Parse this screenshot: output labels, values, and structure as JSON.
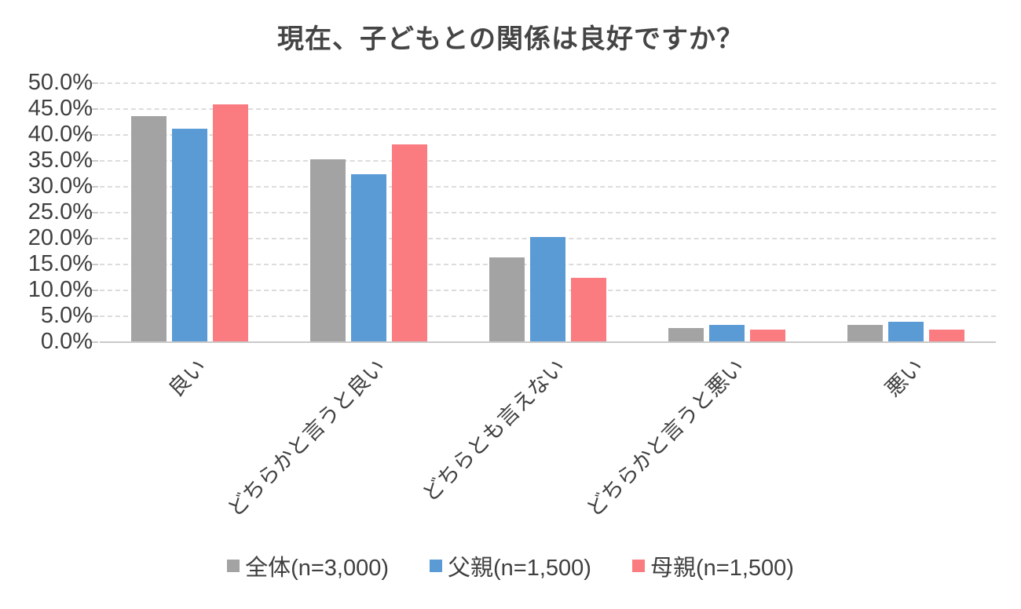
{
  "title": "現在、子どもとの関係は良好ですか？",
  "chart_data": {
    "type": "bar",
    "title": "現在、子どもとの関係は良好ですか？",
    "categories": [
      "良い",
      "どちらかと言うと良い",
      "どちらとも言えない",
      "どちらかと言うと悪い",
      "悪い"
    ],
    "series": [
      {
        "name": "全体(n=3,000)",
        "color": "#a3a3a3",
        "values": [
          43.5,
          35.1,
          16.2,
          2.6,
          3.2
        ]
      },
      {
        "name": "父親(n=1,500)",
        "color": "#5b9bd5",
        "values": [
          41.0,
          32.3,
          20.2,
          3.2,
          3.8
        ]
      },
      {
        "name": "母親(n=1,500)",
        "color": "#fa7b80",
        "values": [
          45.8,
          38.0,
          12.2,
          2.2,
          2.3
        ]
      }
    ],
    "ylim": [
      0,
      50
    ],
    "ytick_step": 5,
    "ytick_labels": [
      "0.0%",
      "5.0%",
      "10.0%",
      "15.0%",
      "20.0%",
      "25.0%",
      "30.0%",
      "35.0%",
      "40.0%",
      "45.0%",
      "50.0%"
    ],
    "xlabel": "",
    "ylabel": "",
    "grid": true,
    "gridline_style": "dashed",
    "legend_position": "bottom",
    "background": "#ffffff",
    "text_color": "#3f3f3f"
  }
}
